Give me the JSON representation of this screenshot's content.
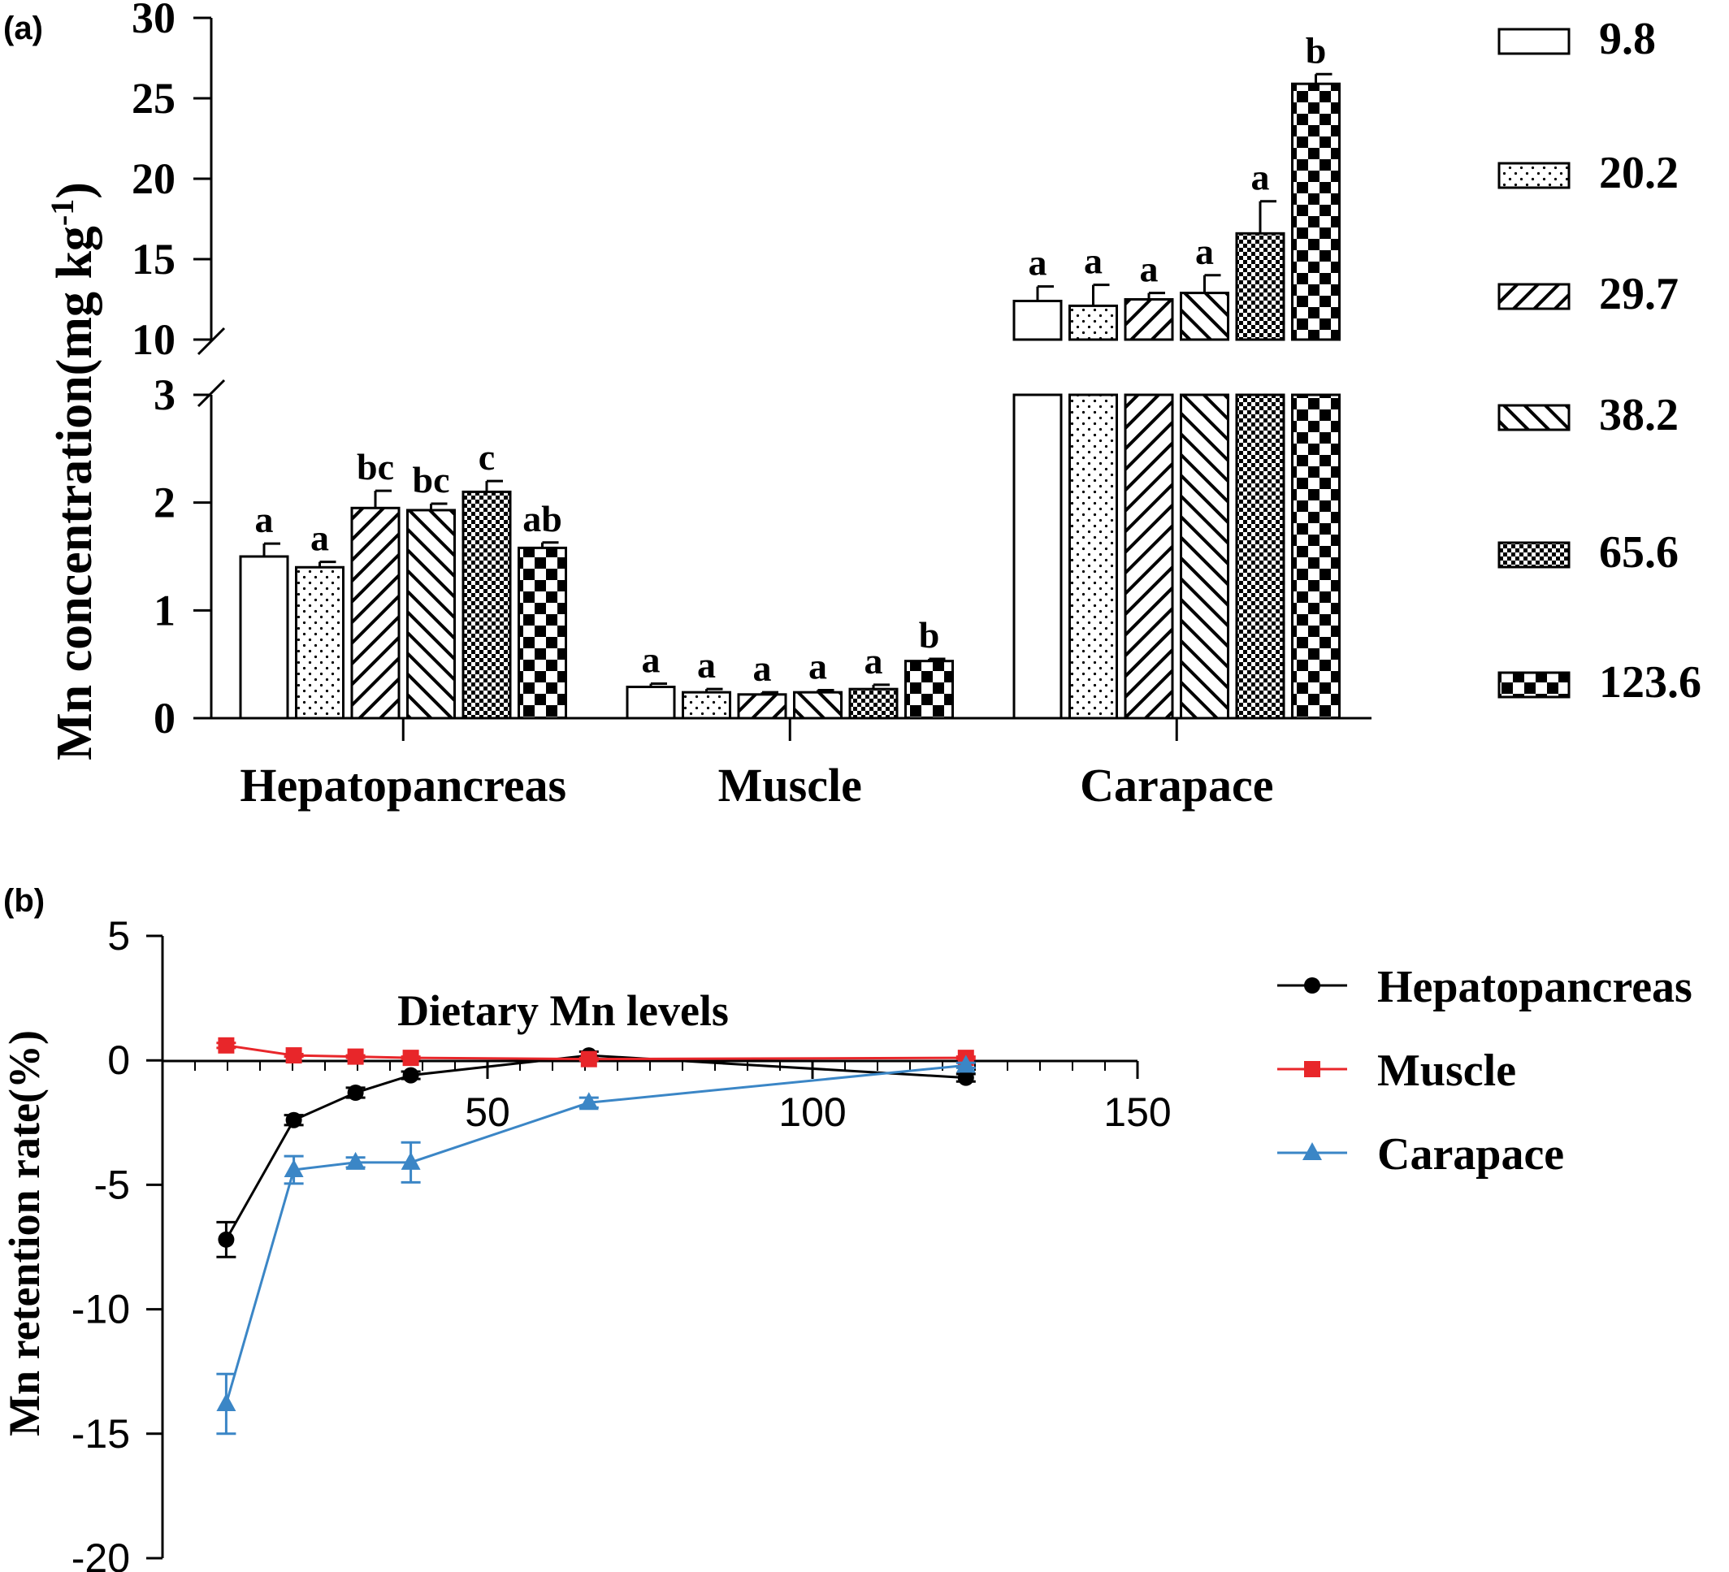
{
  "colors": {
    "hepatopancreas": "#000000",
    "muscle": "#e8262a",
    "carapace": "#3b86c6",
    "bar_edge": "#000000",
    "background": "#ffffff"
  },
  "chart_data": [
    {
      "panel_label": "(a)",
      "type": "bar",
      "ylabel": "Mn concentration(mg kg",
      "ylabel_sup": "-1",
      "ylabel_close": ")",
      "broken_axis": true,
      "ylim_lower": [
        0,
        3
      ],
      "ylim_upper": [
        10,
        30
      ],
      "yticks_lower": [
        "0",
        "1",
        "2",
        "3"
      ],
      "yticks_upper": [
        "10",
        "15",
        "20",
        "25",
        "30"
      ],
      "categories": [
        "Hepatopancreas",
        "Muscle",
        "Carapace"
      ],
      "legend_position": "right",
      "series": [
        {
          "name": "9.8",
          "pattern": "white",
          "values": [
            1.5,
            0.29,
            12.4
          ],
          "errors": [
            0.12,
            0.03,
            0.9
          ],
          "letters": [
            "a",
            "a",
            "a"
          ]
        },
        {
          "name": "20.2",
          "pattern": "dots",
          "values": [
            1.4,
            0.24,
            12.1
          ],
          "errors": [
            0.05,
            0.03,
            1.3
          ],
          "letters": [
            "a",
            "a",
            "a"
          ]
        },
        {
          "name": "29.7",
          "pattern": "diag-up",
          "values": [
            1.95,
            0.22,
            12.5
          ],
          "errors": [
            0.16,
            0.02,
            0.4
          ],
          "letters": [
            "bc",
            "a",
            "a"
          ]
        },
        {
          "name": "38.2",
          "pattern": "diag-down",
          "values": [
            1.93,
            0.24,
            12.9
          ],
          "errors": [
            0.06,
            0.02,
            1.1
          ],
          "letters": [
            "bc",
            "a",
            "a"
          ]
        },
        {
          "name": "65.6",
          "pattern": "fine-check",
          "values": [
            2.1,
            0.27,
            16.6
          ],
          "errors": [
            0.1,
            0.04,
            2.0
          ],
          "letters": [
            "c",
            "a",
            "a"
          ]
        },
        {
          "name": "123.6",
          "pattern": "big-check",
          "values": [
            1.58,
            0.53,
            25.9
          ],
          "errors": [
            0.05,
            0.02,
            0.6
          ],
          "letters": [
            "ab",
            "b",
            "b"
          ]
        }
      ]
    },
    {
      "panel_label": "(b)",
      "type": "line",
      "ylabel": "Mn retention rate(%)",
      "xlabel": "Dietary Mn levels",
      "xlim": [
        0,
        150
      ],
      "ylim": [
        -20,
        5
      ],
      "xticks": [
        "50",
        "100",
        "150"
      ],
      "yticks": [
        "5",
        "0",
        "-5",
        "-10",
        "-15",
        "-20"
      ],
      "x": [
        9.8,
        20.2,
        29.7,
        38.2,
        65.6,
        123.6
      ],
      "legend_position": "right",
      "series": [
        {
          "name": "Hepatopancreas",
          "marker": "circle",
          "values": [
            -7.2,
            -2.4,
            -1.3,
            -0.6,
            0.2,
            -0.7
          ],
          "errors": [
            0.7,
            0.2,
            0.2,
            0.15,
            0.15,
            0.15
          ]
        },
        {
          "name": "Muscle",
          "marker": "square",
          "values": [
            0.6,
            0.2,
            0.15,
            0.1,
            0.05,
            0.1
          ],
          "errors": [
            0.1,
            0.05,
            0.05,
            0.05,
            0.05,
            0.05
          ]
        },
        {
          "name": "Carapace",
          "marker": "triangle",
          "values": [
            -13.8,
            -4.4,
            -4.1,
            -4.1,
            -1.7,
            -0.2
          ],
          "errors": [
            1.2,
            0.55,
            0.2,
            0.8,
            0.2,
            0.1
          ]
        }
      ]
    }
  ]
}
